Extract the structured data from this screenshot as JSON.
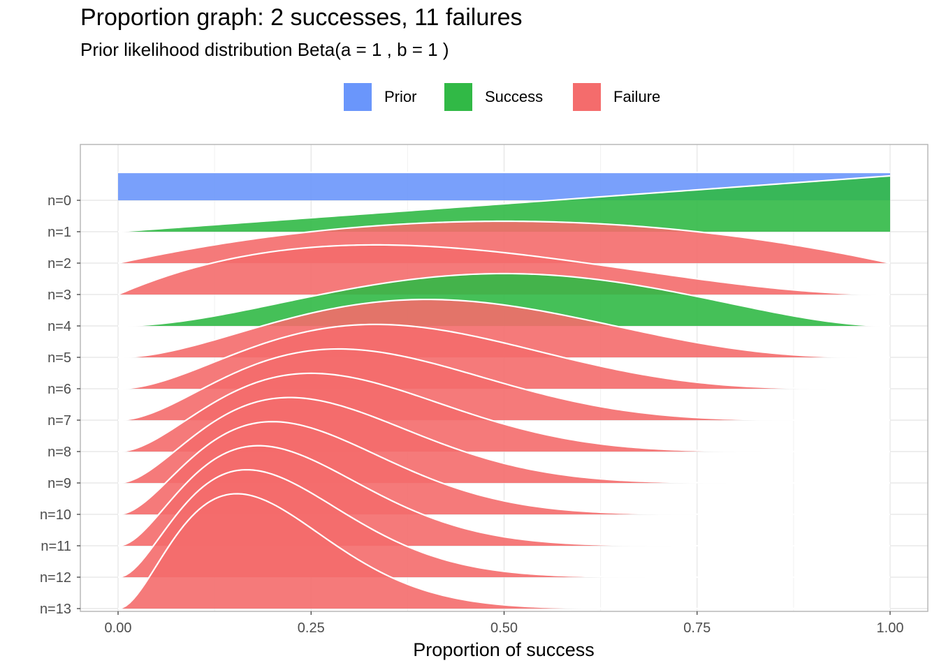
{
  "chart_data": {
    "type": "area",
    "title": "Proportion graph: 2 successes, 11 failures",
    "subtitle": "Prior likelihood distribution Beta(a = 1 , b = 1 )",
    "xlabel": "Proportion of success",
    "ylabel": "",
    "xlim": [
      0,
      1
    ],
    "x_ticks": [
      "0.00",
      "0.25",
      "0.50",
      "0.75",
      "1.00"
    ],
    "x_tick_values": [
      0,
      0.25,
      0.5,
      0.75,
      1
    ],
    "rows": [
      "n=0",
      "n=1",
      "n=2",
      "n=3",
      "n=4",
      "n=5",
      "n=6",
      "n=7",
      "n=8",
      "n=9",
      "n=10",
      "n=11",
      "n=12",
      "n=13"
    ],
    "grid": true,
    "legend_position": "top",
    "legend": [
      {
        "label": "Prior",
        "color": "#6a96fb"
      },
      {
        "label": "Success",
        "color": "#31b946"
      },
      {
        "label": "Failure",
        "color": "#f46c6c"
      }
    ],
    "series": [
      {
        "row": "n=0",
        "outcome": "Prior",
        "distribution": "Beta(1,1)",
        "a": 1,
        "b": 1
      },
      {
        "row": "n=1",
        "outcome": "Success",
        "distribution": "Beta(2,1)",
        "a": 2,
        "b": 1
      },
      {
        "row": "n=2",
        "outcome": "Failure",
        "distribution": "Beta(2,2)",
        "a": 2,
        "b": 2
      },
      {
        "row": "n=3",
        "outcome": "Failure",
        "distribution": "Beta(2,3)",
        "a": 2,
        "b": 3
      },
      {
        "row": "n=4",
        "outcome": "Success",
        "distribution": "Beta(3,3)",
        "a": 3,
        "b": 3
      },
      {
        "row": "n=5",
        "outcome": "Failure",
        "distribution": "Beta(3,4)",
        "a": 3,
        "b": 4
      },
      {
        "row": "n=6",
        "outcome": "Failure",
        "distribution": "Beta(3,5)",
        "a": 3,
        "b": 5
      },
      {
        "row": "n=7",
        "outcome": "Failure",
        "distribution": "Beta(3,6)",
        "a": 3,
        "b": 6
      },
      {
        "row": "n=8",
        "outcome": "Failure",
        "distribution": "Beta(3,7)",
        "a": 3,
        "b": 7
      },
      {
        "row": "n=9",
        "outcome": "Failure",
        "distribution": "Beta(3,8)",
        "a": 3,
        "b": 8
      },
      {
        "row": "n=10",
        "outcome": "Failure",
        "distribution": "Beta(3,9)",
        "a": 3,
        "b": 9
      },
      {
        "row": "n=11",
        "outcome": "Failure",
        "distribution": "Beta(3,10)",
        "a": 3,
        "b": 10
      },
      {
        "row": "n=12",
        "outcome": "Failure",
        "distribution": "Beta(3,11)",
        "a": 3,
        "b": 11
      },
      {
        "row": "n=13",
        "outcome": "Failure",
        "distribution": "Beta(3,12)",
        "a": 3,
        "b": 12
      }
    ]
  }
}
